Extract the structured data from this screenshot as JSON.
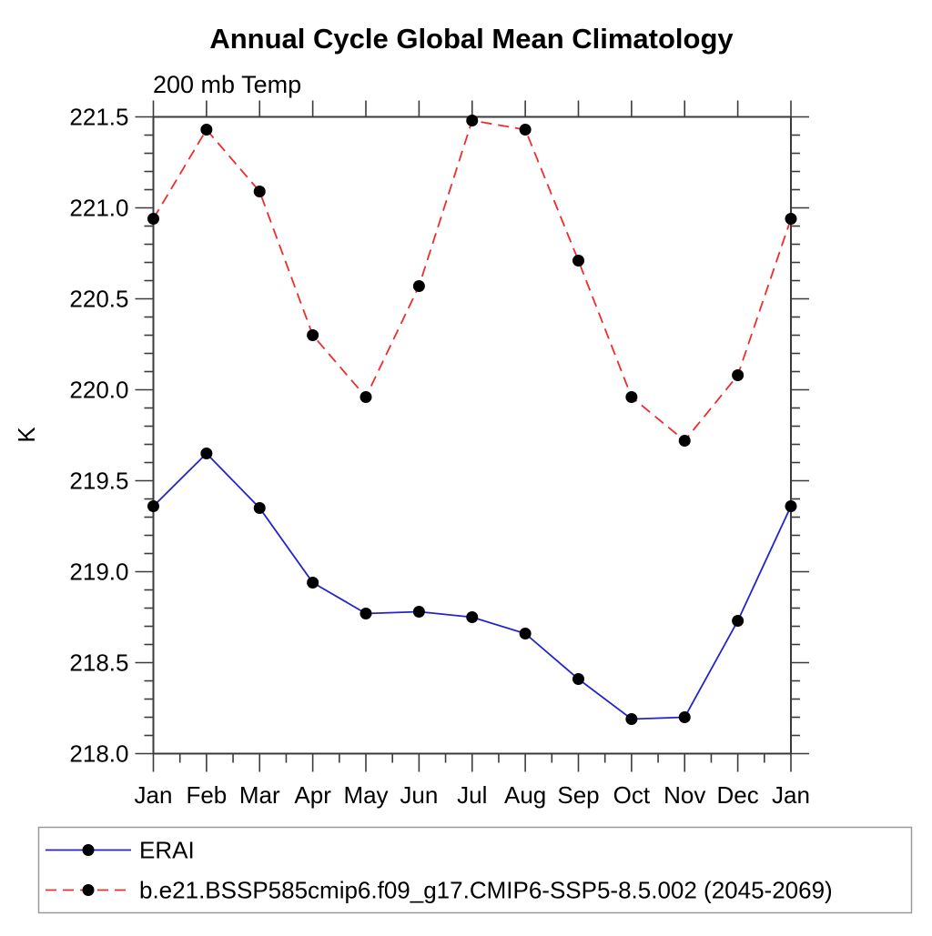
{
  "chart_data": {
    "type": "line",
    "title": "Annual Cycle Global Mean Climatology",
    "subtitle": "200 mb Temp",
    "ylabel": "K",
    "xlabel": "",
    "categories": [
      "Jan",
      "Feb",
      "Mar",
      "Apr",
      "May",
      "Jun",
      "Jul",
      "Aug",
      "Sep",
      "Oct",
      "Nov",
      "Dec",
      "Jan"
    ],
    "ylim": [
      218.0,
      221.5
    ],
    "ytick_major": 0.5,
    "ytick_minor": 0.1,
    "grid": false,
    "legend_position": "bottom",
    "frame_color": "#3a3a3a",
    "text_color": "#000000",
    "series": [
      {
        "name": "ERAI",
        "line_color": "#2323cc",
        "line_style": "solid",
        "marker": "filled-circle",
        "marker_color": "#000000",
        "values": [
          219.36,
          219.65,
          219.35,
          218.94,
          218.77,
          218.78,
          218.75,
          218.66,
          218.41,
          218.19,
          218.2,
          218.73,
          219.36
        ]
      },
      {
        "name": "b.e21.BSSP585cmip6.f09_g17.CMIP6-SSP5-8.5.002 (2045-2069)",
        "line_color": "#ee2c2c",
        "line_style": "dashed",
        "marker": "filled-circle",
        "marker_color": "#000000",
        "values": [
          220.94,
          221.43,
          221.09,
          220.3,
          219.96,
          220.57,
          221.48,
          221.43,
          220.71,
          219.96,
          219.72,
          220.08,
          220.94
        ]
      }
    ]
  }
}
